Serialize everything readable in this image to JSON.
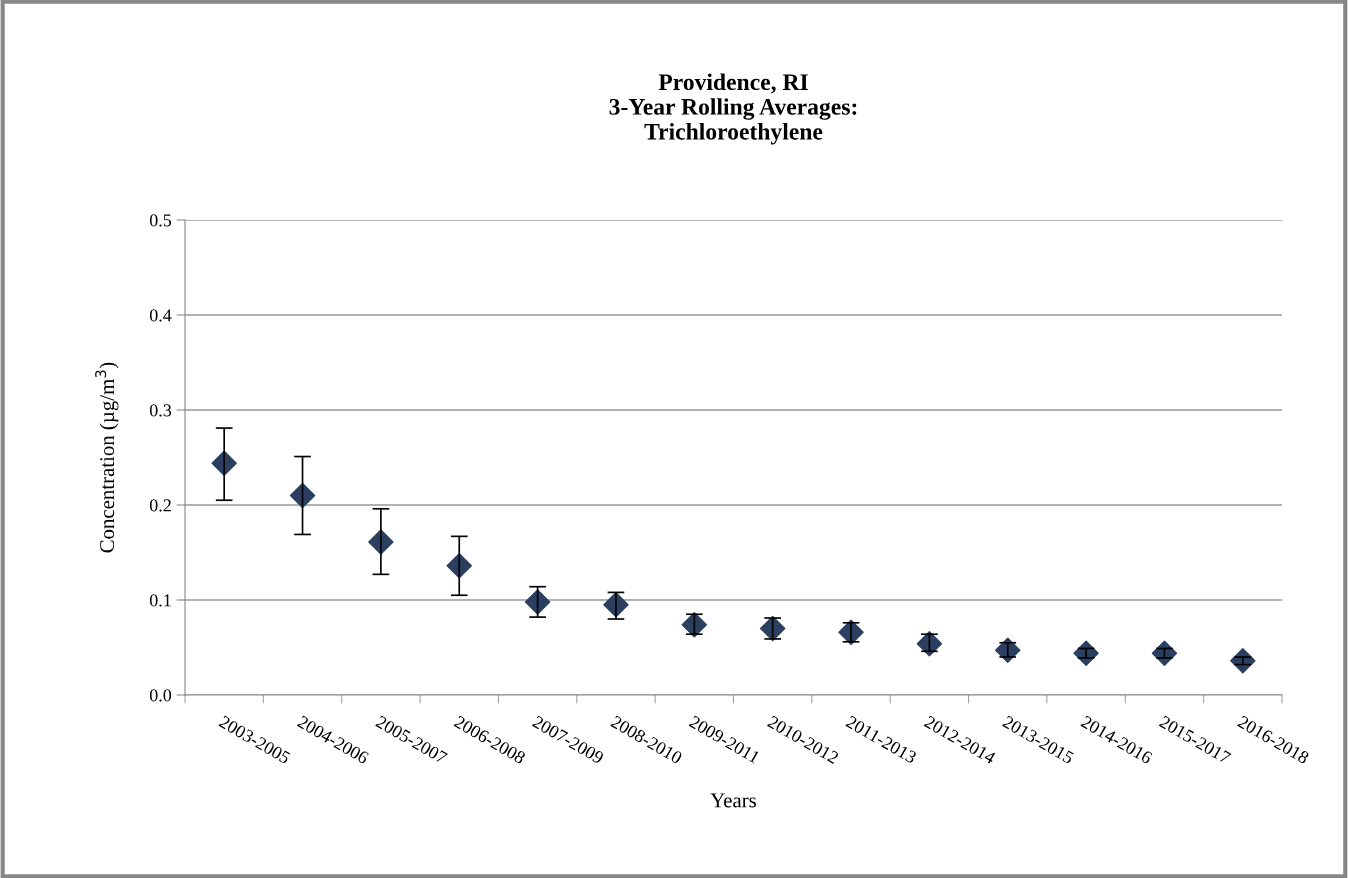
{
  "chart_data": {
    "type": "scatter",
    "title": "Providence, RI\n3-Year Rolling Averages:\nTrichloroethylene",
    "xlabel": "Years",
    "ylabel": "Concentration (µg/m$^{3}$)",
    "categories": [
      "2003-2005",
      "2004-2006",
      "2005-2007",
      "2006-2008",
      "2007-2009",
      "2008-2010",
      "2009-2011",
      "2010-2012",
      "2011-2013",
      "2012-2014",
      "2013-2015",
      "2014-2016",
      "2015-2017",
      "2016-2018"
    ],
    "values": [
      0.244,
      0.21,
      0.161,
      0.136,
      0.098,
      0.095,
      0.074,
      0.07,
      0.066,
      0.054,
      0.047,
      0.044,
      0.044,
      0.036
    ],
    "errors": [
      [
        0.205,
        0.281
      ],
      [
        0.169,
        0.251
      ],
      [
        0.127,
        0.196
      ],
      [
        0.105,
        0.167
      ],
      [
        0.082,
        0.114
      ],
      [
        0.08,
        0.108
      ],
      [
        0.064,
        0.085
      ],
      [
        0.059,
        0.081
      ],
      [
        0.056,
        0.076
      ],
      [
        0.046,
        0.064
      ],
      [
        0.04,
        0.055
      ],
      [
        0.039,
        0.049
      ],
      [
        0.039,
        0.049
      ],
      [
        0.032,
        0.04
      ]
    ],
    "color": "#2b3f61",
    "marker": "diamond",
    "ylim": [
      0,
      0.5
    ],
    "yticks": [
      {
        "value": 0,
        "label": "0.0"
      },
      0.1,
      0.2,
      0.3,
      0.4,
      0.5
    ],
    "grid": "y",
    "legend": false
  }
}
